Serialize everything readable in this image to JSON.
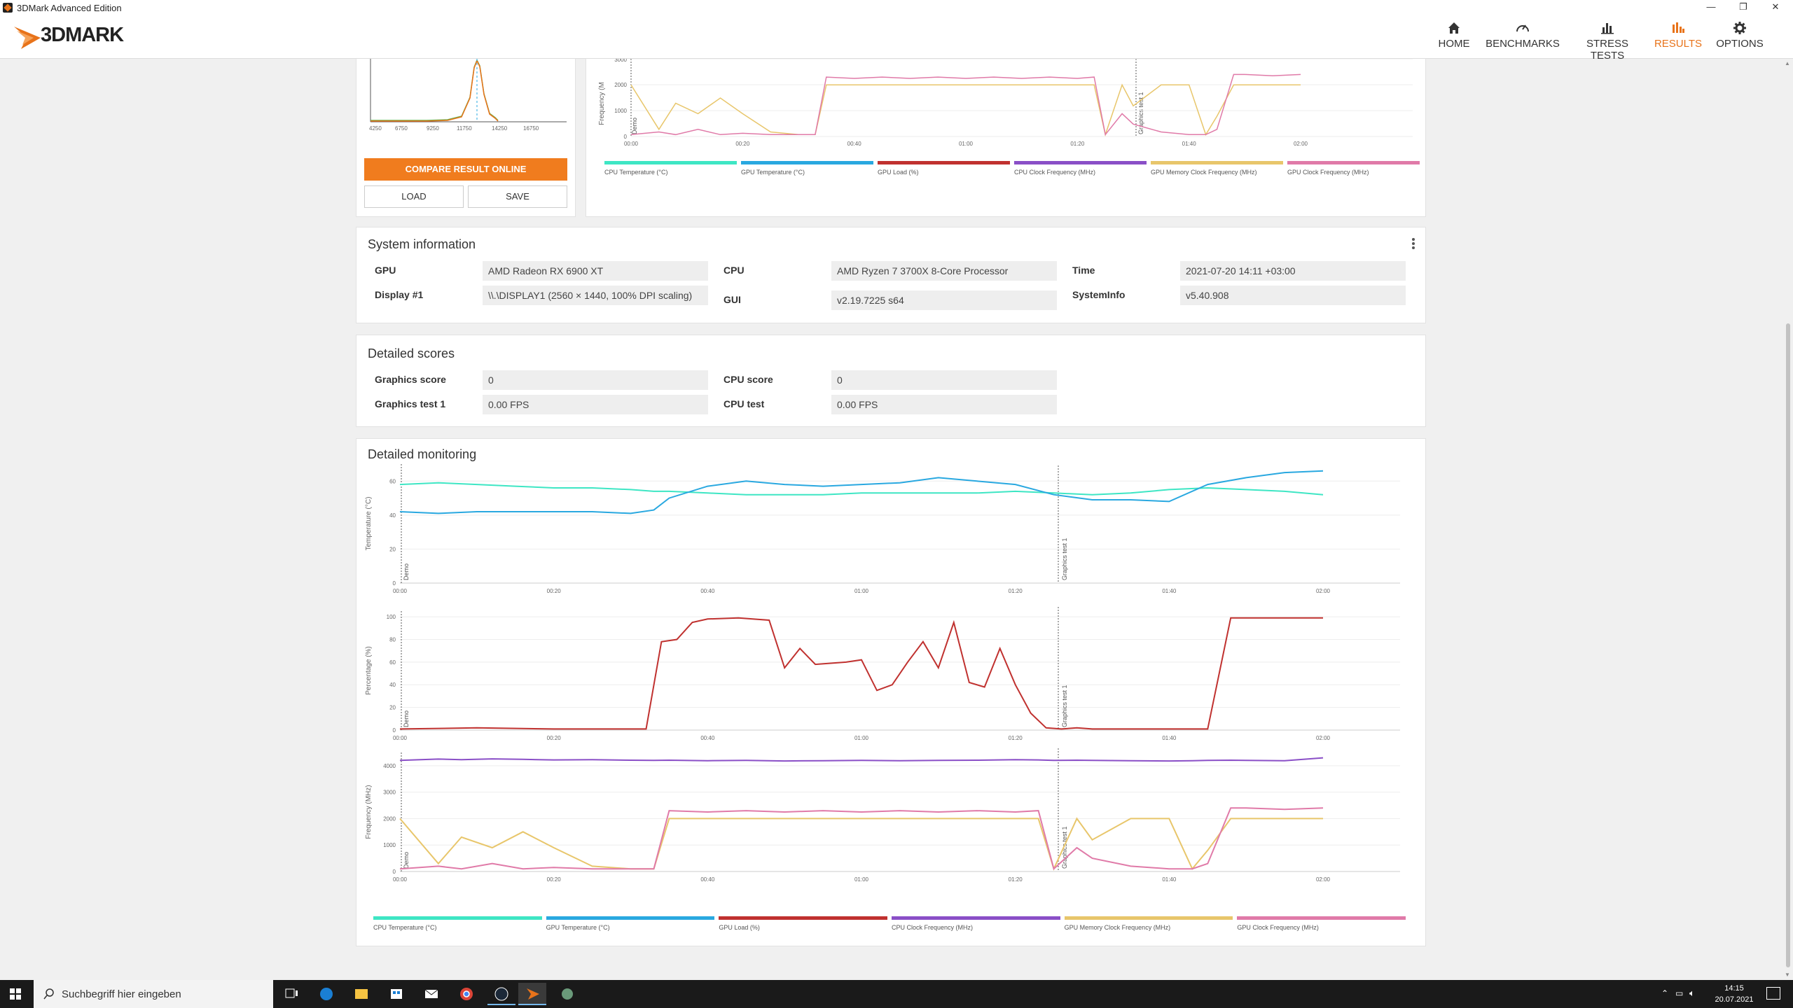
{
  "window": {
    "title": "3DMark Advanced Edition"
  },
  "brand": {
    "name": "3DMARK",
    "accent": "#e8731a"
  },
  "nav": [
    {
      "label": "HOME",
      "icon": "home-icon"
    },
    {
      "label": "BENCHMARKS",
      "icon": "benchmarks-icon"
    },
    {
      "label": "STRESS TESTS",
      "icon": "stress-tests-icon"
    },
    {
      "label": "RESULTS",
      "icon": "results-icon",
      "active": true
    },
    {
      "label": "OPTIONS",
      "icon": "gear-icon"
    }
  ],
  "score_panel": {
    "x_ticks": [
      "4250",
      "6750",
      "9250",
      "11750",
      "14250",
      "16750"
    ],
    "compare_label": "COMPARE RESULT ONLINE",
    "load_label": "LOAD",
    "save_label": "SAVE"
  },
  "top_monitor": {
    "ylabel": "Frequency (M",
    "y_ticks": [
      "3000",
      "2000",
      "1000",
      "0"
    ],
    "x_ticks": [
      "00:00",
      "00:20",
      "00:40",
      "01:00",
      "01:20",
      "01:40",
      "02:00"
    ],
    "markers": [
      "Demo",
      "Graphics test 1"
    ]
  },
  "legend": [
    {
      "label": "CPU Temperature (°C)",
      "color": "#3ee6c4"
    },
    {
      "label": "GPU Temperature (°C)",
      "color": "#29a8e0"
    },
    {
      "label": "GPU Load (%)",
      "color": "#c0312f"
    },
    {
      "label": "CPU Clock Frequency (MHz)",
      "color": "#8a4fc7"
    },
    {
      "label": "GPU Memory Clock Frequency (MHz)",
      "color": "#e8c66b"
    },
    {
      "label": "GPU Clock Frequency (MHz)",
      "color": "#e07aa8"
    }
  ],
  "system_info": {
    "title": "System information",
    "gpu_label": "GPU",
    "gpu": "AMD Radeon RX 6900 XT",
    "display_label": "Display #1",
    "display": "\\\\.\\DISPLAY1 (2560 × 1440, 100% DPI scaling)",
    "cpu_label": "CPU",
    "cpu": "AMD Ryzen 7 3700X 8-Core Processor",
    "gui_label": "GUI",
    "gui": "v2.19.7225 s64",
    "time_label": "Time",
    "time": "2021-07-20 14:11 +03:00",
    "sysinfo_label": "SystemInfo",
    "sysinfo": "v5.40.908"
  },
  "detailed_scores": {
    "title": "Detailed scores",
    "graphics_score_label": "Graphics score",
    "graphics_score": "0",
    "graphics_test_label": "Graphics test 1",
    "graphics_test": "0.00 FPS",
    "cpu_score_label": "CPU score",
    "cpu_score": "0",
    "cpu_test_label": "CPU test",
    "cpu_test": "0.00 FPS"
  },
  "detailed_monitoring": {
    "title": "Detailed monitoring",
    "x_ticks": [
      "00:00",
      "00:20",
      "00:40",
      "01:00",
      "01:20",
      "01:40",
      "02:00"
    ],
    "markers": [
      "Demo",
      "Graphics test 1"
    ],
    "temp": {
      "ylabel": "Temperature (°C)",
      "y_ticks": [
        "60",
        "40",
        "20",
        "0"
      ]
    },
    "pct": {
      "ylabel": "Percentage (%)",
      "y_ticks": [
        "100",
        "80",
        "60",
        "40",
        "20",
        "0"
      ]
    },
    "freq": {
      "ylabel": "Frequency (MHz)",
      "y_ticks": [
        "4000",
        "3000",
        "2000",
        "1000",
        "0"
      ]
    }
  },
  "chart_data": [
    {
      "type": "line",
      "title": "",
      "ylabel": "Temperature (°C)",
      "ylim": [
        0,
        70
      ],
      "x": [
        0,
        5,
        10,
        15,
        20,
        25,
        30,
        33,
        35,
        40,
        45,
        50,
        55,
        60,
        65,
        70,
        75,
        80,
        85,
        90,
        95,
        100,
        105,
        110,
        115,
        120
      ],
      "series": [
        {
          "name": "CPU Temperature (°C)",
          "values": [
            58,
            59,
            58,
            57,
            56,
            56,
            55,
            54,
            54,
            53,
            52,
            52,
            52,
            53,
            53,
            53,
            53,
            54,
            53,
            52,
            53,
            55,
            56,
            55,
            54,
            52
          ]
        },
        {
          "name": "GPU Temperature (°C)",
          "values": [
            42,
            41,
            42,
            42,
            42,
            42,
            41,
            43,
            50,
            57,
            60,
            58,
            57,
            58,
            59,
            62,
            60,
            58,
            52,
            49,
            49,
            48,
            58,
            62,
            65,
            66
          ]
        }
      ]
    },
    {
      "type": "line",
      "title": "",
      "ylabel": "Percentage (%)",
      "ylim": [
        0,
        100
      ],
      "x": [
        0,
        10,
        20,
        30,
        32,
        34,
        36,
        38,
        40,
        44,
        48,
        50,
        52,
        54,
        58,
        60,
        62,
        64,
        66,
        68,
        70,
        72,
        74,
        76,
        78,
        80,
        82,
        84,
        86,
        88,
        90,
        95,
        100,
        105,
        108,
        110,
        120
      ],
      "series": [
        {
          "name": "GPU Load (%)",
          "values": [
            1,
            2,
            1,
            1,
            1,
            78,
            80,
            95,
            98,
            99,
            97,
            55,
            72,
            58,
            60,
            62,
            35,
            40,
            60,
            78,
            55,
            95,
            42,
            38,
            72,
            40,
            15,
            2,
            1,
            2,
            1,
            1,
            1,
            1,
            99,
            99,
            99
          ]
        }
      ]
    },
    {
      "type": "line",
      "title": "",
      "ylabel": "Frequency (MHz)",
      "ylim": [
        0,
        4500
      ],
      "x": [
        0,
        5,
        8,
        12,
        16,
        20,
        25,
        30,
        33,
        35,
        40,
        45,
        50,
        55,
        60,
        65,
        70,
        75,
        80,
        83,
        85,
        88,
        90,
        95,
        100,
        103,
        105,
        108,
        110,
        115,
        120
      ],
      "series": [
        {
          "name": "CPU Clock Frequency (MHz)",
          "values": [
            4200,
            4250,
            4230,
            4260,
            4240,
            4220,
            4230,
            4210,
            4200,
            4210,
            4190,
            4200,
            4180,
            4190,
            4200,
            4190,
            4200,
            4210,
            4230,
            4220,
            4200,
            4210,
            4200,
            4190,
            4180,
            4190,
            4200,
            4210,
            4200,
            4190,
            4300
          ]
        },
        {
          "name": "GPU Memory Clock Frequency (MHz)",
          "values": [
            2000,
            300,
            1300,
            900,
            1500,
            900,
            200,
            100,
            100,
            2000,
            2000,
            2000,
            2000,
            2000,
            2000,
            2000,
            2000,
            2000,
            2000,
            2000,
            100,
            2000,
            1200,
            2000,
            2000,
            100,
            800,
            2000,
            2000,
            2000,
            2000
          ]
        },
        {
          "name": "GPU Clock Frequency (MHz)",
          "values": [
            100,
            200,
            100,
            300,
            100,
            150,
            100,
            100,
            100,
            2300,
            2250,
            2300,
            2250,
            2300,
            2250,
            2300,
            2250,
            2300,
            2250,
            2300,
            100,
            900,
            500,
            200,
            100,
            100,
            300,
            2400,
            2400,
            2350,
            2400
          ]
        }
      ]
    }
  ]
}
